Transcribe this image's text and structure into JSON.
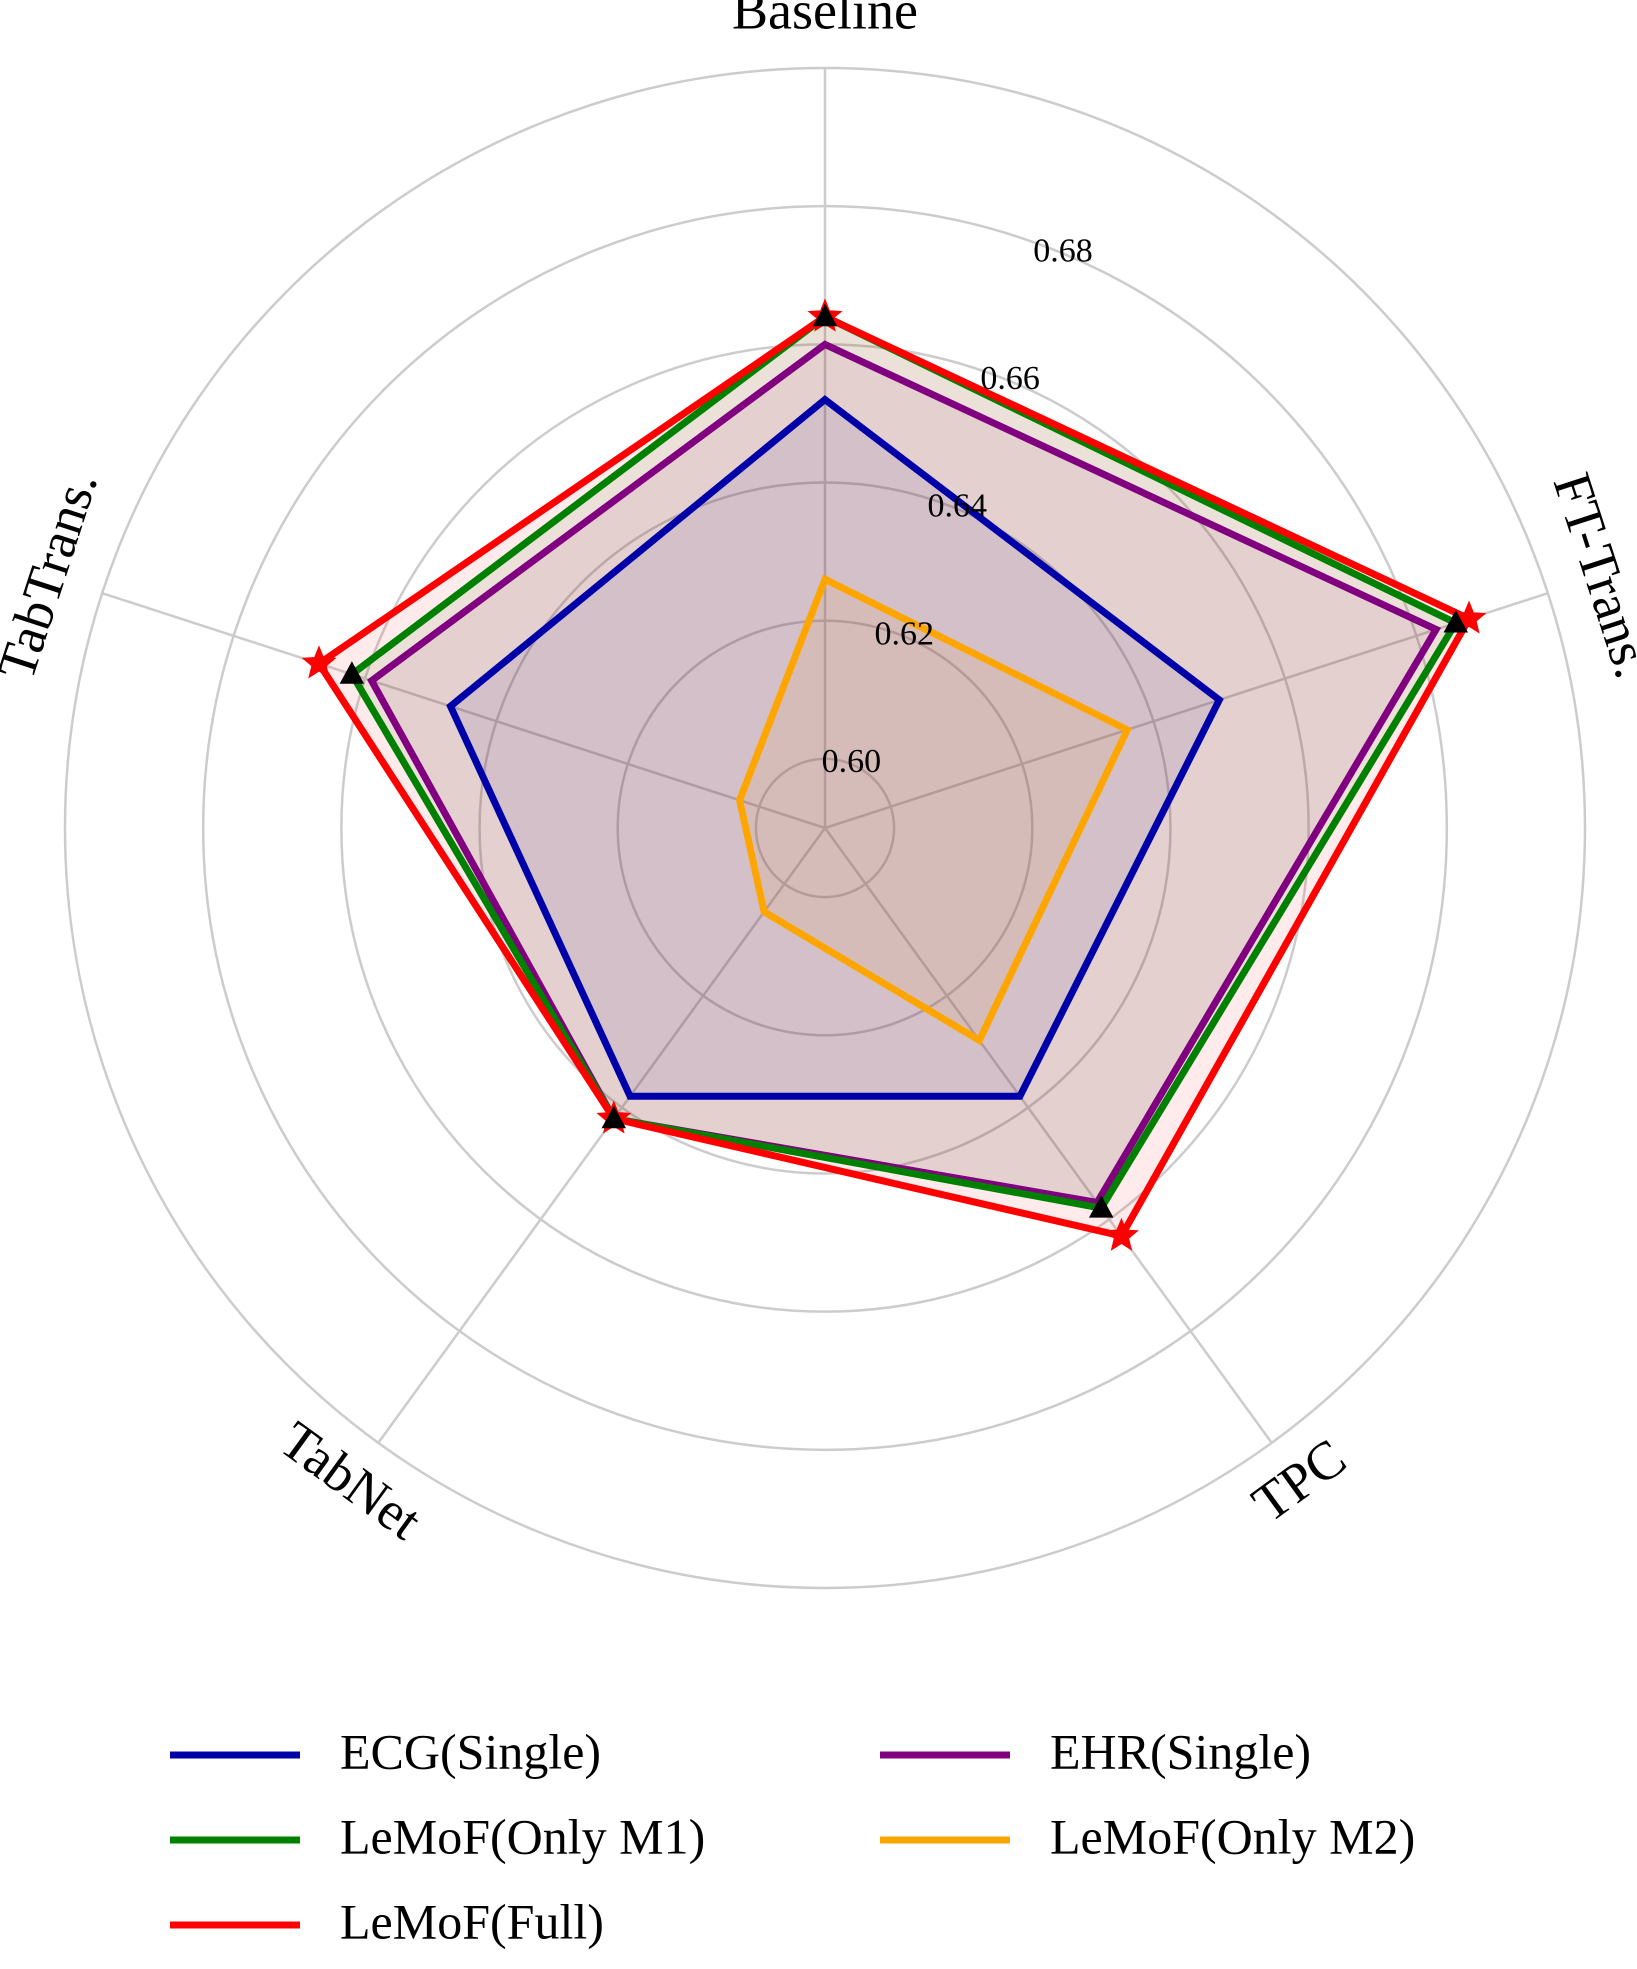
{
  "chart_data": {
    "type": "radar",
    "title": "",
    "axes": [
      "Baseline",
      "FT-Trans.",
      "TPC",
      "TabNet",
      "TabTrans."
    ],
    "radial_ticks": [
      "0.60",
      "0.62",
      "0.64",
      "0.66",
      "0.68"
    ],
    "rlim": [
      0.59,
      0.7
    ],
    "grid": true,
    "legend_position": "bottom",
    "series": [
      {
        "name": "ECG(Single)",
        "color": "#0000a8",
        "values": [
          0.652,
          0.65,
          0.638,
          0.638,
          0.647
        ],
        "marker": "none"
      },
      {
        "name": "EHR(Single)",
        "color": "#800080",
        "values": [
          0.66,
          0.683,
          0.657,
          0.642,
          0.659
        ],
        "marker": "none"
      },
      {
        "name": "LeMoF(Only M1)",
        "color": "#008000",
        "values": [
          0.664,
          0.686,
          0.658,
          0.642,
          0.662
        ],
        "marker": "triangle"
      },
      {
        "name": "LeMoF(Only M2)",
        "color": "#ffa500",
        "values": [
          0.626,
          0.636,
          0.628,
          0.605,
          0.603
        ],
        "marker": "none"
      },
      {
        "name": "LeMoF(Full)",
        "color": "#ff0000",
        "values": [
          0.664,
          0.688,
          0.663,
          0.642,
          0.667
        ],
        "marker": "star"
      }
    ]
  }
}
